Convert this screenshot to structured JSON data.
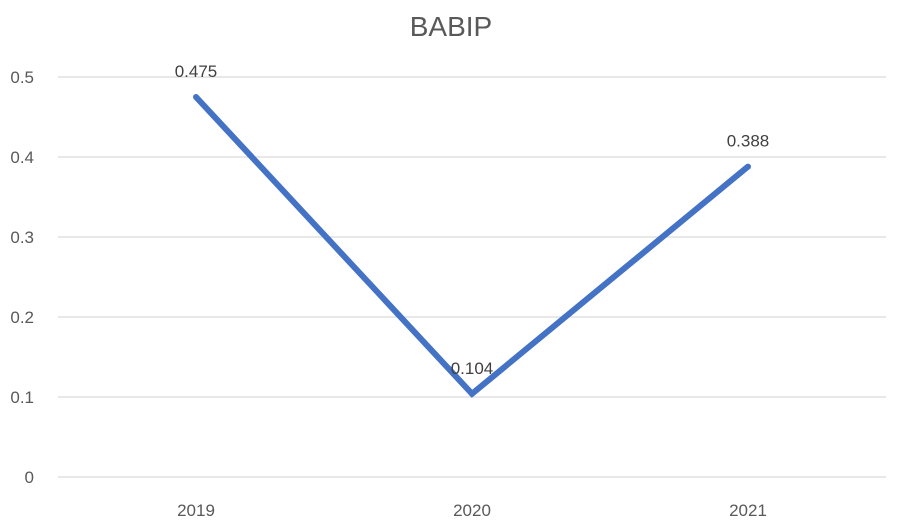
{
  "chart_data": {
    "type": "line",
    "title": "BABIP",
    "xlabel": "",
    "ylabel": "",
    "categories": [
      "2019",
      "2020",
      "2021"
    ],
    "series": [
      {
        "values": [
          0.475,
          0.104,
          0.388
        ],
        "data_labels": [
          "0.475",
          "0.104",
          "0.388"
        ],
        "color": "#4472c4"
      }
    ],
    "y_ticks": [
      0,
      0.1,
      0.2,
      0.3,
      0.4,
      0.5
    ],
    "y_tick_labels": [
      "0",
      "0.1",
      "0.2",
      "0.3",
      "0.4",
      "0.5"
    ],
    "ylim": [
      0,
      0.5
    ],
    "grid": true,
    "legend": "none",
    "colors": {
      "line": "#4472c4",
      "grid": "#d9d9d9",
      "text": "#595959"
    }
  }
}
